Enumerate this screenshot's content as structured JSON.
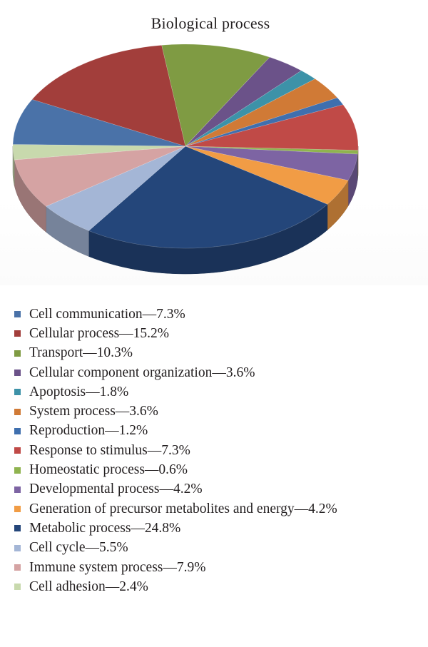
{
  "chart_data": {
    "type": "pie",
    "title": "Biological process",
    "three_d": true,
    "legend_position": "bottom",
    "slices": [
      {
        "label": "Cell communication—7.3%",
        "name": "Cell communication",
        "value": 7.3,
        "color": "#4a72a8"
      },
      {
        "label": "Cellular process—15.2%",
        "name": "Cellular process",
        "value": 15.2,
        "color": "#a23e3b"
      },
      {
        "label": "Transport—10.3%",
        "name": "Transport",
        "value": 10.3,
        "color": "#7f9b43"
      },
      {
        "label": "Cellular component organization—3.6%",
        "name": "Cellular component organization",
        "value": 3.6,
        "color": "#6b5289"
      },
      {
        "label": "Apoptosis—1.8%",
        "name": "Apoptosis",
        "value": 1.8,
        "color": "#3d92a8"
      },
      {
        "label": "System process—3.6%",
        "name": "System process",
        "value": 3.6,
        "color": "#d07a36"
      },
      {
        "label": "Reproduction—1.2%",
        "name": "Reproduction",
        "value": 1.2,
        "color": "#3f6fae"
      },
      {
        "label": "Response to stimulus—7.3%",
        "name": "Response to stimulus",
        "value": 7.3,
        "color": "#c04a47"
      },
      {
        "label": "Homeostatic process—0.6%",
        "name": "Homeostatic process",
        "value": 0.6,
        "color": "#8fb34f"
      },
      {
        "label": "Developmental process—4.2%",
        "name": "Developmental process",
        "value": 4.2,
        "color": "#7d64a3"
      },
      {
        "label": "Generation of precursor metabolites and energy—4.2%",
        "name": "Generation of precursor metabolites and energy",
        "value": 4.2,
        "color": "#f19c45"
      },
      {
        "label": "Metabolic process—24.8%",
        "name": "Metabolic process",
        "value": 24.8,
        "color": "#24467a"
      },
      {
        "label": "Cell cycle—5.5%",
        "name": "Cell cycle",
        "value": 5.5,
        "color": "#a4b6d6"
      },
      {
        "label": "Immune system process—7.9%",
        "name": "Immune system process",
        "value": 7.9,
        "color": "#d5a3a3"
      },
      {
        "label": "Cell adhesion—2.4%",
        "name": "Cell adhesion",
        "value": 2.4,
        "color": "#c8d9ad"
      }
    ]
  }
}
